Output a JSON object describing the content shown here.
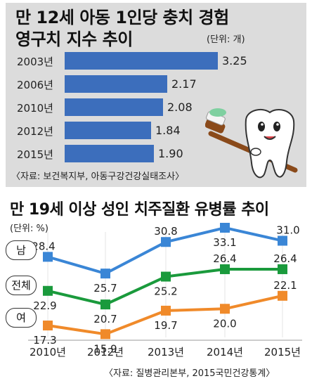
{
  "bar_chart": {
    "title_line1": "만 12세 아동 1인당 충치 경험",
    "title_line2": "영구치 지수 추이",
    "unit": "(단위: 개)",
    "source": "〈자료: 보건복지부, 아동구강건강실태조사〉",
    "colors": {
      "bar": "#3c6ebc",
      "panel": "#dcdcdc"
    }
  },
  "line_chart": {
    "title": "만 19세 이상 성인 치주질환 유병률 추이",
    "unit": "(단위: %)",
    "source": "〈자료: 질병관리본부, 2015국민건강통계〉",
    "pills": {
      "male": "남",
      "total": "전체",
      "female": "여"
    },
    "colors": {
      "male": "#3a86d6",
      "total": "#1a9a3c",
      "female": "#f08a2a"
    }
  },
  "chart_data": [
    {
      "type": "bar",
      "orientation": "horizontal",
      "categories": [
        "2003년",
        "2006년",
        "2010년",
        "2012년",
        "2015년"
      ],
      "values": [
        3.25,
        2.17,
        2.08,
        1.84,
        1.9
      ],
      "value_labels": [
        "3.25",
        "2.17",
        "2.08",
        "1.84",
        "1.90"
      ],
      "xlim": [
        0,
        3.5
      ]
    },
    {
      "type": "line",
      "categories": [
        "2010년",
        "2012년",
        "2013년",
        "2014년",
        "2015년"
      ],
      "series": [
        {
          "name": "남",
          "values": [
            28.4,
            25.7,
            30.8,
            33.1,
            31.0
          ],
          "labels": [
            "28.4",
            "25.7",
            "30.8",
            "33.1",
            "31.0"
          ]
        },
        {
          "name": "전체",
          "values": [
            22.9,
            20.7,
            25.2,
            26.4,
            26.4
          ],
          "labels": [
            "22.9",
            "20.7",
            "25.2",
            "26.4",
            "26.4"
          ]
        },
        {
          "name": "여",
          "values": [
            17.3,
            15.9,
            19.7,
            20.0,
            22.1
          ],
          "labels": [
            "17.3",
            "15.9",
            "19.7",
            "20.0",
            "22.1"
          ]
        }
      ]
    }
  ]
}
